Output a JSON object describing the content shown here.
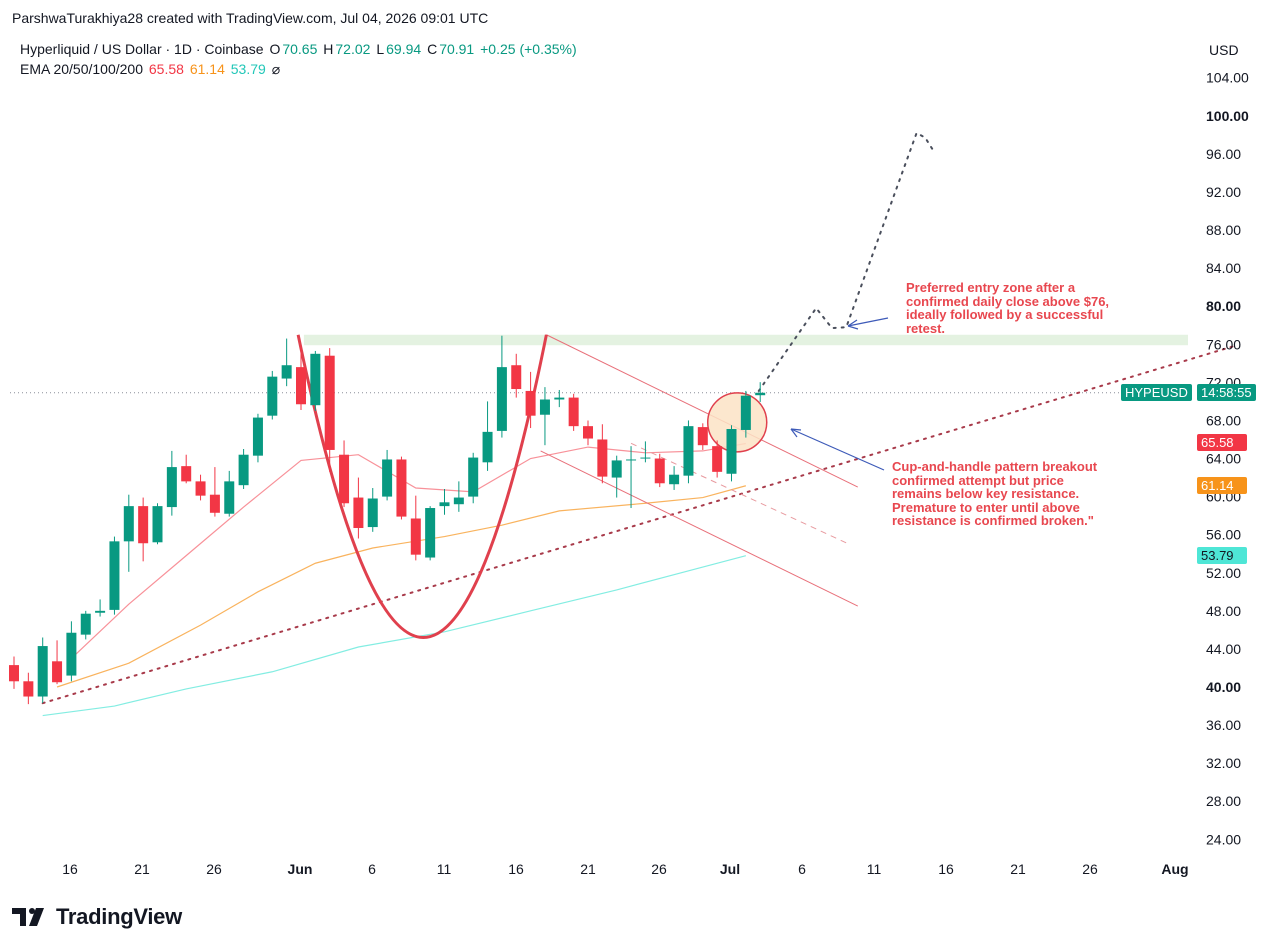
{
  "header": {
    "creator_line": "ParshwaTurakhiya28 created with TradingView.com, Jul 04, 2026 09:01 UTC"
  },
  "legend": {
    "symbol": "Hyperliquid / US Dollar · 1D · Coinbase",
    "open_label": "O",
    "open": "70.65",
    "high_label": "H",
    "high": "72.02",
    "low_label": "L",
    "low": "69.94",
    "close_label": "C",
    "close": "70.91",
    "change": "+0.25 (+0.35%)",
    "ema_label": "EMA 20/50/100/200",
    "ema20": "65.58",
    "ema50": "61.14",
    "ema100": "53.79",
    "ema200_icon": "⌀"
  },
  "price_scale": {
    "currency": "USD",
    "ticks": [
      "104.00",
      "100.00",
      "96.00",
      "92.00",
      "88.00",
      "84.00",
      "80.00",
      "76.00",
      "72.00",
      "68.00",
      "64.00",
      "60.00",
      "56.00",
      "52.00",
      "48.00",
      "44.00",
      "40.00",
      "36.00",
      "32.00",
      "28.00",
      "24.00"
    ],
    "bold_ticks": [
      "100.00",
      "80.00",
      "40.00"
    ]
  },
  "tags": {
    "symbol": "HYPEUSD",
    "countdown": "14:58:55",
    "ema20": "65.58",
    "ema50": "61.14",
    "ema100": "53.79"
  },
  "annotations": {
    "entry_zone": "Preferred entry zone after a confirmed daily close above $76, ideally followed by a successful retest.",
    "pattern": "Cup-and-handle pattern breakout confirmed attempt but price remains below key resistance. Premature to enter until above resistance is confirmed broken.\""
  },
  "footer": {
    "brand": "TradingView"
  },
  "colors": {
    "up": "#089981",
    "down": "#f23645",
    "ema20": "#f23645",
    "ema50": "#f7931a",
    "ema100": "#4ee6d6",
    "annotation": "#e8474f",
    "arrow": "#3d5ab8",
    "zone": "#dff0dc"
  },
  "chart_data": {
    "type": "candlestick",
    "x_axis_labels": [
      "16",
      "21",
      "26",
      "Jun",
      "6",
      "11",
      "16",
      "21",
      "26",
      "Jul",
      "6",
      "11",
      "16",
      "21",
      "26",
      "Aug"
    ],
    "ylim": [
      22,
      106
    ],
    "candles": [
      {
        "date": "May 13",
        "o": 42.3,
        "h": 43.2,
        "l": 39.8,
        "c": 40.6
      },
      {
        "date": "May 14",
        "o": 40.6,
        "h": 41.5,
        "l": 38.2,
        "c": 39.0
      },
      {
        "date": "May 15",
        "o": 39.0,
        "h": 45.2,
        "l": 38.3,
        "c": 44.3
      },
      {
        "date": "May 17",
        "o": 42.7,
        "h": 44.9,
        "l": 40.3,
        "c": 40.5
      },
      {
        "date": "May 18",
        "o": 41.2,
        "h": 46.9,
        "l": 40.6,
        "c": 45.7
      },
      {
        "date": "May 19",
        "o": 45.5,
        "h": 48.0,
        "l": 45.0,
        "c": 47.7
      },
      {
        "date": "May 20",
        "o": 47.8,
        "h": 49.2,
        "l": 47.4,
        "c": 48.0
      },
      {
        "date": "May 21",
        "o": 48.1,
        "h": 55.8,
        "l": 47.6,
        "c": 55.3
      },
      {
        "date": "May 22",
        "o": 55.3,
        "h": 60.2,
        "l": 52.1,
        "c": 59.0
      },
      {
        "date": "May 23",
        "o": 59.0,
        "h": 59.9,
        "l": 53.2,
        "c": 55.1
      },
      {
        "date": "May 24",
        "o": 55.2,
        "h": 59.3,
        "l": 55.0,
        "c": 59.0
      },
      {
        "date": "May 25",
        "o": 58.9,
        "h": 64.8,
        "l": 58.0,
        "c": 63.1
      },
      {
        "date": "May 26",
        "o": 63.2,
        "h": 64.4,
        "l": 61.4,
        "c": 61.6
      },
      {
        "date": "May 27",
        "o": 61.6,
        "h": 62.3,
        "l": 59.6,
        "c": 60.1
      },
      {
        "date": "May 28",
        "o": 60.2,
        "h": 63.1,
        "l": 57.9,
        "c": 58.3
      },
      {
        "date": "May 29",
        "o": 58.2,
        "h": 62.7,
        "l": 57.9,
        "c": 61.6
      },
      {
        "date": "May 30",
        "o": 61.2,
        "h": 65.0,
        "l": 60.8,
        "c": 64.4
      },
      {
        "date": "May 31",
        "o": 64.3,
        "h": 68.7,
        "l": 63.6,
        "c": 68.3
      },
      {
        "date": "Jun 1",
        "o": 68.5,
        "h": 73.2,
        "l": 68.1,
        "c": 72.6
      },
      {
        "date": "Jun 2",
        "o": 72.4,
        "h": 76.6,
        "l": 71.6,
        "c": 73.8
      },
      {
        "date": "Jun 3",
        "o": 73.6,
        "h": 75.9,
        "l": 69.1,
        "c": 69.7
      },
      {
        "date": "Jun 4",
        "o": 69.6,
        "h": 75.3,
        "l": 69.0,
        "c": 75.0
      },
      {
        "date": "Jun 5",
        "o": 74.8,
        "h": 75.6,
        "l": 62.6,
        "c": 64.9
      },
      {
        "date": "Jun 6",
        "o": 64.4,
        "h": 65.9,
        "l": 58.9,
        "c": 59.3
      },
      {
        "date": "Jun 7",
        "o": 59.9,
        "h": 62.0,
        "l": 55.6,
        "c": 56.7
      },
      {
        "date": "Jun 8",
        "o": 56.8,
        "h": 60.9,
        "l": 56.3,
        "c": 59.8
      },
      {
        "date": "Jun 9",
        "o": 60.0,
        "h": 64.9,
        "l": 59.6,
        "c": 63.9
      },
      {
        "date": "Jun 10",
        "o": 63.9,
        "h": 64.2,
        "l": 57.6,
        "c": 57.9
      },
      {
        "date": "Jun 11",
        "o": 57.7,
        "h": 60.1,
        "l": 53.3,
        "c": 53.9
      },
      {
        "date": "Jun 12",
        "o": 53.6,
        "h": 59.0,
        "l": 53.3,
        "c": 58.8
      },
      {
        "date": "Jun 13",
        "o": 59.0,
        "h": 60.8,
        "l": 58.1,
        "c": 59.4
      },
      {
        "date": "Jun 14",
        "o": 59.2,
        "h": 61.6,
        "l": 58.4,
        "c": 59.9
      },
      {
        "date": "Jun 15",
        "o": 60.0,
        "h": 64.6,
        "l": 59.3,
        "c": 64.1
      },
      {
        "date": "Jun 16",
        "o": 63.6,
        "h": 70.0,
        "l": 62.7,
        "c": 66.8
      },
      {
        "date": "Jun 17",
        "o": 66.9,
        "h": 76.9,
        "l": 66.2,
        "c": 73.6
      },
      {
        "date": "Jun 18",
        "o": 73.8,
        "h": 75.0,
        "l": 70.4,
        "c": 71.3
      },
      {
        "date": "Jun 19",
        "o": 71.1,
        "h": 73.1,
        "l": 67.2,
        "c": 68.5
      },
      {
        "date": "Jun 20",
        "o": 68.6,
        "h": 71.5,
        "l": 65.4,
        "c": 70.2
      },
      {
        "date": "Jun 21",
        "o": 70.2,
        "h": 71.2,
        "l": 69.4,
        "c": 70.4
      },
      {
        "date": "Jun 22",
        "o": 70.4,
        "h": 70.8,
        "l": 66.9,
        "c": 67.4
      },
      {
        "date": "Jun 23",
        "o": 67.4,
        "h": 68.0,
        "l": 65.4,
        "c": 66.1
      },
      {
        "date": "Jun 24",
        "o": 66.0,
        "h": 67.6,
        "l": 61.4,
        "c": 62.1
      },
      {
        "date": "Jun 25",
        "o": 62.0,
        "h": 64.3,
        "l": 59.9,
        "c": 63.8
      },
      {
        "date": "Jun 26",
        "o": 63.8,
        "h": 65.3,
        "l": 58.8,
        "c": 63.9
      },
      {
        "date": "Jun 27",
        "o": 64.0,
        "h": 65.8,
        "l": 63.6,
        "c": 64.1
      },
      {
        "date": "Jun 28",
        "o": 64.0,
        "h": 64.5,
        "l": 61.0,
        "c": 61.4
      },
      {
        "date": "Jun 29",
        "o": 61.3,
        "h": 63.2,
        "l": 60.7,
        "c": 62.3
      },
      {
        "date": "Jun 30",
        "o": 62.2,
        "h": 68.0,
        "l": 61.4,
        "c": 67.4
      },
      {
        "date": "Jul 1",
        "o": 67.3,
        "h": 67.7,
        "l": 64.9,
        "c": 65.4
      },
      {
        "date": "Jul 2",
        "o": 65.3,
        "h": 65.9,
        "l": 62.0,
        "c": 62.6
      },
      {
        "date": "Jul 3",
        "o": 62.4,
        "h": 67.5,
        "l": 61.6,
        "c": 67.1
      },
      {
        "date": "Jul 4",
        "o": 67.0,
        "h": 71.1,
        "l": 66.2,
        "c": 70.6
      },
      {
        "date": "Jul 5",
        "o": 70.65,
        "h": 72.02,
        "l": 69.94,
        "c": 70.91
      }
    ],
    "ema": [
      {
        "name": "EMA 20",
        "color": "#f23645",
        "values": [
          [
            4,
            43.0
          ],
          [
            8,
            48.7
          ],
          [
            12,
            53.8
          ],
          [
            16,
            58.9
          ],
          [
            20,
            63.8
          ],
          [
            24,
            64.4
          ],
          [
            28,
            60.9
          ],
          [
            32,
            60.5
          ],
          [
            36,
            64.0
          ],
          [
            40,
            65.2
          ],
          [
            44,
            64.6
          ],
          [
            48,
            64.8
          ],
          [
            51,
            65.58
          ]
        ]
      },
      {
        "name": "EMA 50",
        "color": "#f7931a",
        "values": [
          [
            3,
            40.0
          ],
          [
            8,
            42.5
          ],
          [
            13,
            46.5
          ],
          [
            17,
            50.0
          ],
          [
            21,
            53.0
          ],
          [
            25,
            54.6
          ],
          [
            30,
            55.8
          ],
          [
            34,
            57.0
          ],
          [
            38,
            58.5
          ],
          [
            44,
            59.3
          ],
          [
            48,
            59.9
          ],
          [
            51,
            61.14
          ]
        ]
      },
      {
        "name": "EMA 100",
        "color": "#4ee6d6",
        "values": [
          [
            2,
            37.0
          ],
          [
            7,
            38.0
          ],
          [
            12,
            39.8
          ],
          [
            18,
            41.6
          ],
          [
            24,
            44.2
          ],
          [
            30,
            45.8
          ],
          [
            36,
            48.0
          ],
          [
            42,
            50.2
          ],
          [
            48,
            52.6
          ],
          [
            51,
            53.79
          ]
        ]
      }
    ],
    "drawings": {
      "resistance_zone": [
        75.9,
        77.0
      ],
      "cup_curve": [
        [
          19.8,
          77.0
        ],
        [
          28.6,
          45.2
        ],
        [
          37.1,
          77.0
        ]
      ],
      "channel_upper": [
        [
          37.1,
          77.0
        ],
        [
          58.8,
          61.0
        ]
      ],
      "channel_lower": [
        [
          36.7,
          64.8
        ],
        [
          58.8,
          48.5
        ]
      ],
      "channel_mid_dashed": [
        [
          43.0,
          65.6
        ],
        [
          58.2,
          55.0
        ]
      ],
      "trendline_dotted": [
        [
          2,
          38.3
        ],
        [
          85,
          75.8
        ]
      ],
      "projection_dotted": [
        [
          51.9,
          71.1
        ],
        [
          55.9,
          79.8
        ],
        [
          57.0,
          77.7
        ],
        [
          58.0,
          77.8
        ],
        [
          62.9,
          98.2
        ],
        [
          63.5,
          97.7
        ],
        [
          64.0,
          96.5
        ]
      ],
      "breakout_circle": {
        "center": [
          50.4,
          67.8
        ],
        "radius_price": 3.1
      }
    }
  }
}
